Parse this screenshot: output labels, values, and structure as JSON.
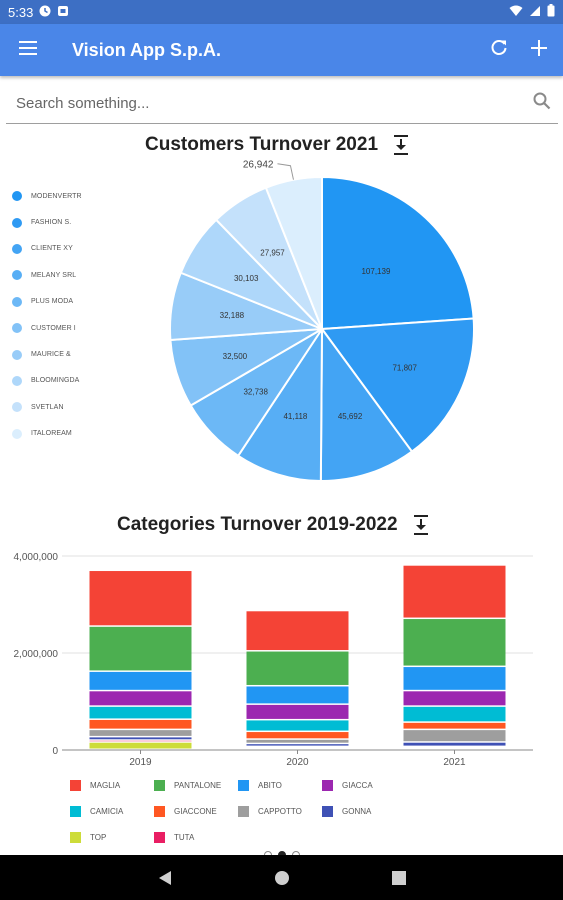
{
  "status_bar": {
    "time": "5:33"
  },
  "app_bar": {
    "title": "Vision App S.p.A."
  },
  "search": {
    "placeholder": "Search something..."
  },
  "pie_chart": {
    "title": "Customers Turnover 2021"
  },
  "bar_chart": {
    "title": "Categories Turnover 2019-2022"
  },
  "chart_data": [
    {
      "type": "pie",
      "title": "Customers Turnover 2021",
      "legend_position": "left",
      "labels": [
        "MODENVERTR",
        "FASHION S.",
        "CLIENTE XY",
        "MELANY SRL",
        "PLUS MODA",
        "CUSTOMER I",
        "MAURICE &",
        "BLOOMINGDA",
        "SVETLAN",
        "ITALOREAM"
      ],
      "values": [
        107139,
        71807,
        45692,
        41118,
        32738,
        32500,
        32188,
        30103,
        27957,
        26942
      ],
      "value_labels": [
        "107,139",
        "71,807",
        "45,692",
        "41,118",
        "32,738",
        "32,500",
        "32,188",
        "30,103",
        "27,957",
        "26,942"
      ],
      "colors": [
        "#2196f3",
        "#2f9af3",
        "#43a4f4",
        "#57aef5",
        "#6cb8f6",
        "#82c2f7",
        "#98ccf8",
        "#aed7fa",
        "#c4e1fb",
        "#dbeefd"
      ]
    },
    {
      "type": "bar",
      "stacked": true,
      "title": "Categories Turnover 2019-2022",
      "categories": [
        "2019",
        "2020",
        "2021"
      ],
      "ylim": [
        0,
        4000000
      ],
      "y_ticks": [
        "0",
        "2,000,000",
        "4,000,000"
      ],
      "y_tick_values": [
        0,
        2000000,
        4000000
      ],
      "grid": true,
      "legend_position": "bottom",
      "series": [
        {
          "name": "TOP",
          "color": "#cddc39",
          "values": [
            150000,
            30000,
            30000
          ]
        },
        {
          "name": "TUTA",
          "color": "#e91e63",
          "values": [
            40000,
            30000,
            30000
          ]
        },
        {
          "name": "GONNA",
          "color": "#3f51b5",
          "values": [
            70000,
            60000,
            90000
          ]
        },
        {
          "name": "CAPPOTTO",
          "color": "#9e9e9e",
          "values": [
            150000,
            90000,
            260000
          ]
        },
        {
          "name": "GIACCONE",
          "color": "#ff5722",
          "values": [
            210000,
            160000,
            150000
          ]
        },
        {
          "name": "CAMICIA",
          "color": "#00bcd4",
          "values": [
            270000,
            240000,
            330000
          ]
        },
        {
          "name": "GIACCA",
          "color": "#9c27b0",
          "values": [
            320000,
            320000,
            320000
          ]
        },
        {
          "name": "ABITO",
          "color": "#2196f3",
          "values": [
            400000,
            380000,
            500000
          ]
        },
        {
          "name": "PANTALONE",
          "color": "#4caf50",
          "values": [
            930000,
            720000,
            990000
          ]
        },
        {
          "name": "MAGLIA",
          "color": "#f44336",
          "values": [
            1150000,
            830000,
            1100000
          ]
        }
      ],
      "legend_order": [
        "MAGLIA",
        "PANTALONE",
        "ABITO",
        "GIACCA",
        "CAMICIA",
        "GIACCONE",
        "CAPPOTTO",
        "GONNA",
        "TOP",
        "TUTA"
      ]
    }
  ]
}
